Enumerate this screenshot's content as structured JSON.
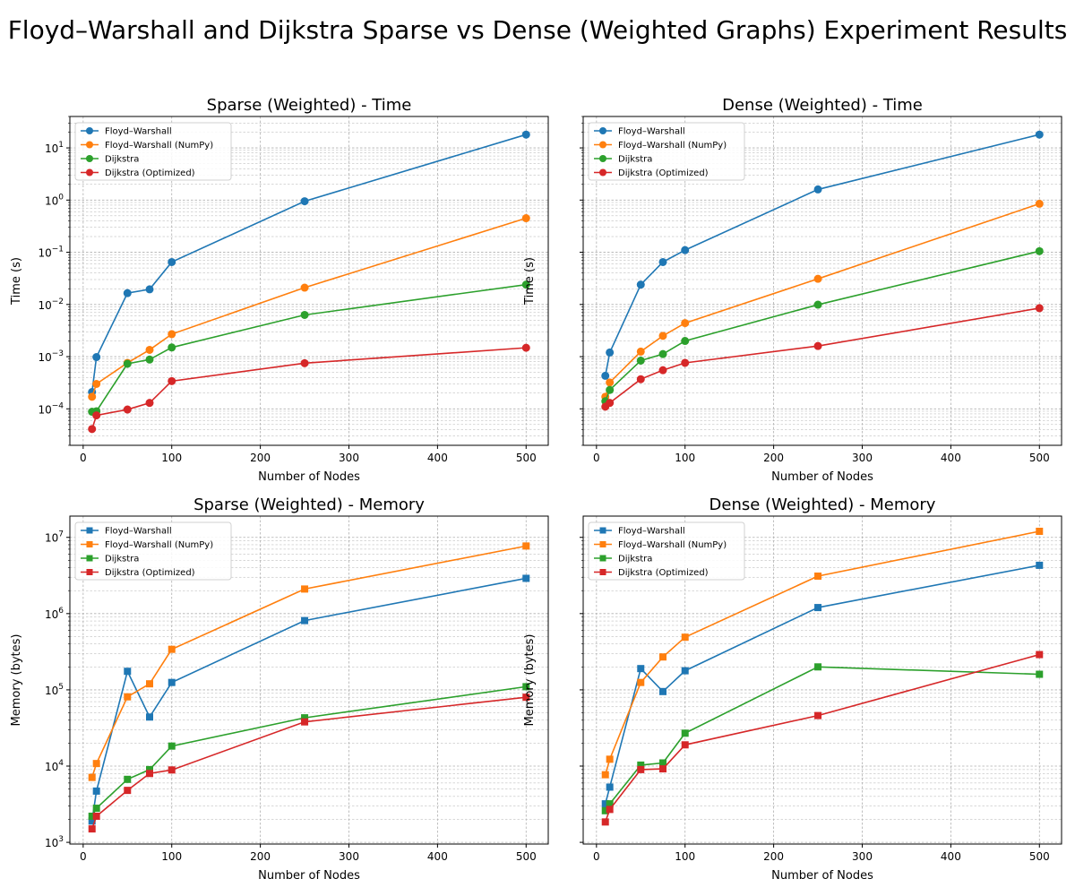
{
  "figure": {
    "title": "Floyd–Warshall and Dijkstra Sparse vs Dense (Weighted Graphs) Experiment Results"
  },
  "chart_data": [
    {
      "type": "line",
      "title": "Sparse (Weighted) - Time",
      "xlabel": "Number of Nodes",
      "ylabel": "Time (s)",
      "yscale": "log",
      "marker": "circle",
      "legend": "top-left",
      "grid": true,
      "x": [
        10,
        15,
        50,
        75,
        100,
        250,
        500
      ],
      "series": [
        {
          "name": "Floyd–Warshall",
          "color": "#1f77b4",
          "values": [
            0.00021,
            0.00098,
            0.0165,
            0.0195,
            0.065,
            0.95,
            18
          ]
        },
        {
          "name": "Floyd–Warshall (NumPy)",
          "color": "#ff7f0e",
          "values": [
            0.00017,
            0.0003,
            0.00076,
            0.00135,
            0.0027,
            0.021,
            0.45
          ]
        },
        {
          "name": "Dijkstra",
          "color": "#2ca02c",
          "values": [
            8.8e-05,
            9e-05,
            0.00073,
            0.00088,
            0.0015,
            0.0063,
            0.024
          ]
        },
        {
          "name": "Dijkstra (Optimized)",
          "color": "#d62728",
          "values": [
            4.1e-05,
            7.5e-05,
            9.7e-05,
            0.00013,
            0.00034,
            0.00075,
            0.00148
          ]
        }
      ]
    },
    {
      "type": "line",
      "title": "Dense (Weighted) - Time",
      "xlabel": "Number of Nodes",
      "ylabel": "Time (s)",
      "yscale": "log",
      "marker": "circle",
      "legend": "top-left",
      "grid": true,
      "x": [
        10,
        15,
        50,
        75,
        100,
        250,
        500
      ],
      "series": [
        {
          "name": "Floyd–Warshall",
          "color": "#1f77b4",
          "values": [
            0.00043,
            0.0012,
            0.024,
            0.065,
            0.11,
            1.6,
            18
          ]
        },
        {
          "name": "Floyd–Warshall (NumPy)",
          "color": "#ff7f0e",
          "values": [
            0.00017,
            0.00032,
            0.00125,
            0.0025,
            0.0044,
            0.031,
            0.85
          ]
        },
        {
          "name": "Dijkstra",
          "color": "#2ca02c",
          "values": [
            0.00014,
            0.00023,
            0.00084,
            0.00112,
            0.002,
            0.0099,
            0.105
          ]
        },
        {
          "name": "Dijkstra (Optimized)",
          "color": "#d62728",
          "values": [
            0.00011,
            0.00013,
            0.00037,
            0.00055,
            0.00076,
            0.0016,
            0.0085
          ]
        }
      ]
    },
    {
      "type": "line",
      "title": "Sparse (Weighted) - Memory",
      "xlabel": "Number of Nodes",
      "ylabel": "Memory (bytes)",
      "yscale": "log",
      "marker": "square",
      "legend": "top-left",
      "grid": true,
      "x": [
        10,
        15,
        50,
        75,
        100,
        250,
        500
      ],
      "series": [
        {
          "name": "Floyd–Warshall",
          "color": "#1f77b4",
          "values": [
            1900,
            4700,
            175000,
            44000,
            125000,
            810000,
            2900000
          ]
        },
        {
          "name": "Floyd–Warshall (NumPy)",
          "color": "#ff7f0e",
          "values": [
            7100,
            10800,
            81000,
            120000,
            340000,
            2100000,
            7700000
          ]
        },
        {
          "name": "Dijkstra",
          "color": "#2ca02c",
          "values": [
            2200,
            2800,
            6700,
            9000,
            18300,
            43000,
            110000
          ]
        },
        {
          "name": "Dijkstra (Optimized)",
          "color": "#d62728",
          "values": [
            1500,
            2200,
            4800,
            8000,
            8900,
            38000,
            80000
          ]
        }
      ]
    },
    {
      "type": "line",
      "title": "Dense (Weighted) - Memory",
      "xlabel": "Number of Nodes",
      "ylabel": "Memory (bytes)",
      "yscale": "log",
      "marker": "square",
      "legend": "top-left",
      "grid": true,
      "x": [
        10,
        15,
        50,
        75,
        100,
        250,
        500
      ],
      "series": [
        {
          "name": "Floyd–Warshall",
          "color": "#1f77b4",
          "values": [
            3200,
            5300,
            190000,
            95000,
            178000,
            1200000,
            4300000
          ]
        },
        {
          "name": "Floyd–Warshall (NumPy)",
          "color": "#ff7f0e",
          "values": [
            7700,
            12300,
            125000,
            270000,
            490000,
            3100000,
            12000000
          ]
        },
        {
          "name": "Dijkstra",
          "color": "#2ca02c",
          "values": [
            2600,
            3200,
            10300,
            11000,
            27000,
            200000,
            160000
          ]
        },
        {
          "name": "Dijkstra (Optimized)",
          "color": "#d62728",
          "values": [
            1850,
            2700,
            9000,
            9200,
            19000,
            46000,
            290000
          ]
        }
      ]
    }
  ]
}
